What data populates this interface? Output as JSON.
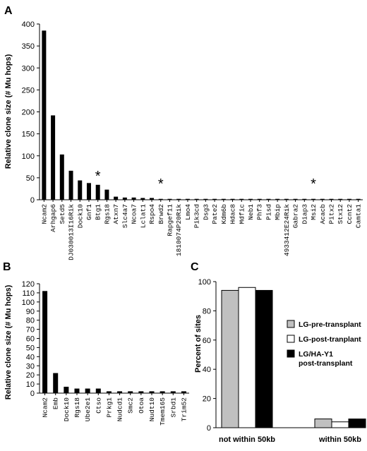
{
  "panels": [
    {
      "letter": "A",
      "chart_data": {
        "type": "bar",
        "ylabel": "Relative clone size (# Mu hops)",
        "ylim": [
          0,
          400
        ],
        "yticks": [
          0,
          50,
          100,
          150,
          200,
          250,
          300,
          350,
          400
        ],
        "categories": [
          "Ncam2",
          "Arhgap6",
          "Setd5",
          "DJ030013I16Rik",
          "Dock10",
          "Gnf1",
          "Btg1",
          "Rgs18",
          "Atxn7",
          "Slc4a7",
          "Ncoa7",
          "Lclat1",
          "Rspo4",
          "Brwd2",
          "Rapgef11",
          "1810074P20Rik",
          "Lmo4",
          "Pik3cd",
          "Dsg3",
          "Pate2",
          "Kdm6b",
          "Hdac8",
          "Mdfic",
          "Neb1",
          "Phf3",
          "Pisd",
          "Mbip",
          "4933412E24Rik",
          "Gabra2",
          "Diap3",
          "Msi2",
          "Acacb",
          "Pitx2",
          "Stx12",
          "Ccnt2",
          "Camta1"
        ],
        "values": [
          385,
          192,
          103,
          66,
          44,
          38,
          34,
          23,
          7,
          5,
          5,
          4,
          4,
          2,
          2,
          2,
          2,
          2,
          2,
          2,
          2,
          2,
          2,
          2,
          2,
          2,
          2,
          2,
          2,
          2,
          2,
          2,
          2,
          2,
          2,
          2
        ],
        "annotations": [
          {
            "text": "*",
            "category": "Btg1"
          },
          {
            "text": "*",
            "category": "Brwd2"
          },
          {
            "text": "*",
            "category": "Msi2"
          }
        ],
        "grid": false,
        "bar_color": "#000000"
      }
    },
    {
      "letter": "B",
      "chart_data": {
        "type": "bar",
        "ylabel": "Relative clone size (# Mu hops)",
        "ylim": [
          0,
          120
        ],
        "yticks": [
          0,
          10,
          20,
          30,
          40,
          50,
          60,
          70,
          80,
          90,
          100,
          110,
          120
        ],
        "categories": [
          "Ncam2",
          "Emb",
          "Dock10",
          "Rgs18",
          "Ube2e1",
          "Ctso",
          "Prkg1",
          "Nudcd1",
          "Smc2",
          "Otoa",
          "Nudt10",
          "Tmem165",
          "Srbd1",
          "Trim52"
        ],
        "values": [
          112,
          22,
          7,
          5,
          5,
          5,
          2,
          2,
          2,
          2,
          2,
          2,
          2,
          2
        ],
        "grid": false,
        "bar_color": "#000000"
      }
    },
    {
      "letter": "C",
      "chart_data": {
        "type": "bar",
        "ylabel": "Percent of sites",
        "ylim": [
          0,
          100
        ],
        "yticks": [
          0,
          20,
          40,
          60,
          80,
          100
        ],
        "categories": [
          "not within 50kb",
          "within 50kb"
        ],
        "series": [
          {
            "name": "LG-pre-transplant",
            "color": "#c0c0c0",
            "values": [
              94,
              6
            ]
          },
          {
            "name": "LG-post-tranplant",
            "color": "#ffffff",
            "values": [
              96,
              4
            ]
          },
          {
            "name": "LG/HA-Y1 post-transplant",
            "color": "#000000",
            "values": [
              94,
              6
            ]
          }
        ],
        "legend_position": "right",
        "grid": false
      }
    }
  ]
}
